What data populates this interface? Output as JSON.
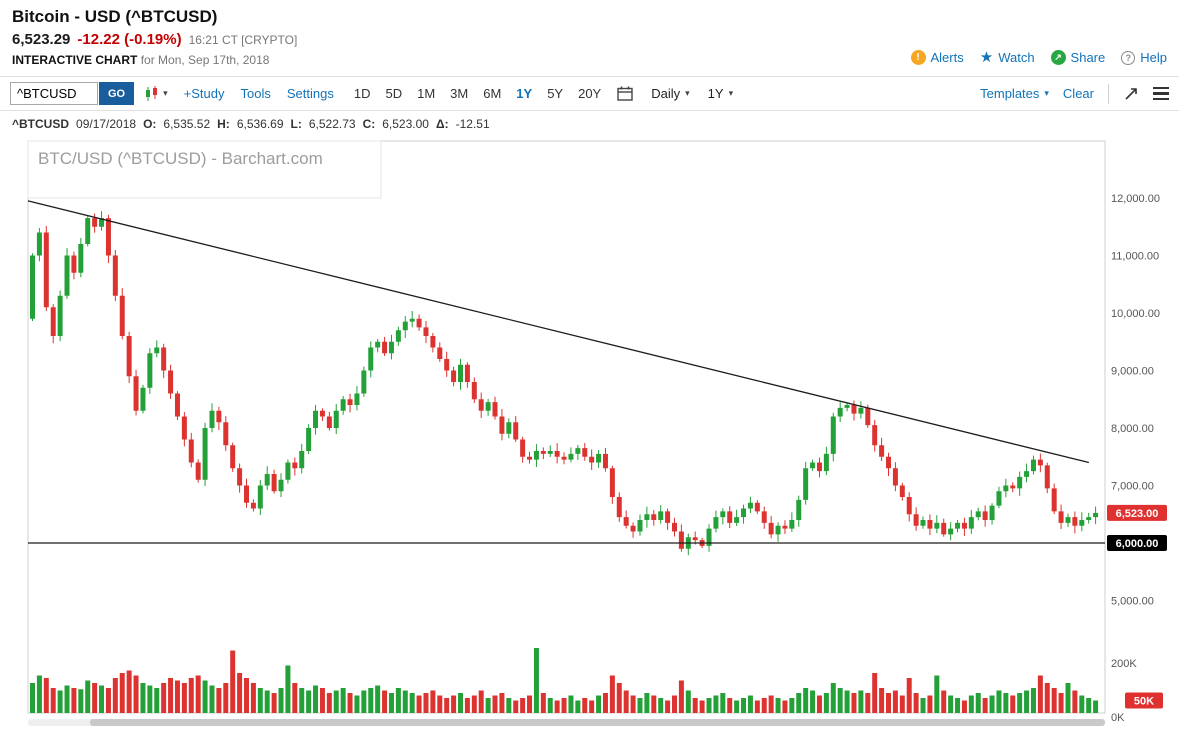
{
  "theme": {
    "link_blue": "#1273b8",
    "negative_red": "#c40000",
    "go_button_bg": "#1a5d9c",
    "alert_orange": "#f5a623",
    "share_green": "#28a745"
  },
  "header": {
    "title": "Bitcoin - USD (^BTCUSD)",
    "price": "6,523.29",
    "change": "-12.22 (-0.19%)",
    "quote_time": "16:21 CT [CRYPTO]",
    "chart_label": "INTERACTIVE CHART",
    "chart_date": "for Mon, Sep 17th, 2018",
    "actions": [
      {
        "label": "Alerts"
      },
      {
        "label": "Watch"
      },
      {
        "label": "Share"
      },
      {
        "label": "Help"
      }
    ]
  },
  "toolbar": {
    "symbol_input": "^BTCUSD",
    "go_label": "GO",
    "links": [
      "+Study",
      "Tools",
      "Settings"
    ],
    "ranges": [
      "1D",
      "5D",
      "1M",
      "3M",
      "6M",
      "1Y",
      "5Y",
      "20Y"
    ],
    "selected_range": "1Y",
    "frequency": "Daily",
    "period": "1Y",
    "templates_label": "Templates",
    "clear_label": "Clear"
  },
  "quote_line": {
    "symbol": "^BTCUSD",
    "date": "09/17/2018",
    "o_label": "O:",
    "o": "6,535.52",
    "h_label": "H:",
    "h": "6,536.69",
    "l_label": "L:",
    "l": "6,522.73",
    "c_label": "C:",
    "c": "6,523.00",
    "d_label": "Δ:",
    "d": "-12.51"
  },
  "chart_data": {
    "type": "candlestick",
    "title": "BTC/USD (^BTCUSD) - Barchart.com",
    "frequency": "Daily",
    "range": "1Y",
    "price_axis": {
      "ticks": [
        12000,
        11000,
        10000,
        9000,
        8000,
        7000,
        6000,
        5000
      ],
      "labels": [
        "12,000.00",
        "11,000.00",
        "10,000.00",
        "9,000.00",
        "8,000.00",
        "7,000.00",
        "6,000.00",
        "5,000.00"
      ],
      "min": 4600,
      "max": 12600
    },
    "last_price": 6523.0,
    "last_price_label": "6,523.00",
    "support_line": {
      "price": 6000,
      "label": "6,000.00"
    },
    "trendline": {
      "start_frac": 0,
      "start_price": 11950,
      "end_frac": 0.985,
      "end_price": 7400
    },
    "first_open": 9900,
    "closes": [
      11000,
      11400,
      10100,
      9600,
      10300,
      11000,
      10700,
      11200,
      11650,
      11500,
      11650,
      11000,
      10300,
      9600,
      8900,
      8300,
      8700,
      9300,
      9400,
      9000,
      8600,
      8200,
      7800,
      7400,
      7100,
      8000,
      8300,
      8100,
      7700,
      7300,
      7000,
      6700,
      6600,
      7000,
      7200,
      6900,
      7100,
      7400,
      7300,
      7600,
      8000,
      8300,
      8200,
      8000,
      8300,
      8500,
      8400,
      8600,
      9000,
      9400,
      9500,
      9300,
      9500,
      9700,
      9850,
      9900,
      9750,
      9600,
      9400,
      9200,
      9000,
      8800,
      9100,
      8800,
      8500,
      8300,
      8450,
      8200,
      7900,
      8100,
      7800,
      7500,
      7450,
      7600,
      7550,
      7600,
      7500,
      7450,
      7550,
      7650,
      7500,
      7400,
      7550,
      7300,
      6800,
      6450,
      6300,
      6200,
      6400,
      6500,
      6400,
      6550,
      6350,
      6200,
      5900,
      6100,
      6050,
      5950,
      6250,
      6450,
      6550,
      6350,
      6450,
      6600,
      6700,
      6550,
      6350,
      6150,
      6300,
      6250,
      6400,
      6750,
      7300,
      7400,
      7250,
      7550,
      8200,
      8350,
      8400,
      8250,
      8350,
      8050,
      7700,
      7500,
      7300,
      7000,
      6800,
      6500,
      6300,
      6400,
      6250,
      6350,
      6150,
      6250,
      6350,
      6250,
      6450,
      6550,
      6400,
      6650,
      6900,
      7000,
      6950,
      7150,
      7250,
      7450,
      7350,
      6950,
      6550,
      6350,
      6450,
      6300,
      6400,
      6450,
      6523
    ],
    "volumes_k": [
      120,
      150,
      140,
      100,
      90,
      110,
      100,
      95,
      130,
      120,
      110,
      100,
      140,
      160,
      170,
      150,
      120,
      110,
      100,
      120,
      140,
      130,
      120,
      140,
      150,
      130,
      110,
      100,
      120,
      250,
      160,
      140,
      120,
      100,
      90,
      80,
      100,
      190,
      120,
      100,
      90,
      110,
      100,
      80,
      90,
      100,
      80,
      70,
      90,
      100,
      110,
      90,
      80,
      100,
      90,
      80,
      70,
      80,
      90,
      70,
      60,
      70,
      80,
      60,
      70,
      90,
      60,
      70,
      80,
      60,
      50,
      60,
      70,
      260,
      80,
      60,
      50,
      60,
      70,
      50,
      60,
      50,
      70,
      80,
      150,
      120,
      90,
      70,
      60,
      80,
      70,
      60,
      50,
      70,
      130,
      90,
      60,
      50,
      60,
      70,
      80,
      60,
      50,
      60,
      70,
      50,
      60,
      70,
      60,
      50,
      60,
      80,
      100,
      90,
      70,
      80,
      120,
      100,
      90,
      80,
      90,
      80,
      160,
      100,
      80,
      90,
      70,
      140,
      80,
      60,
      70,
      150,
      90,
      70,
      60,
      50,
      70,
      80,
      60,
      70,
      90,
      80,
      70,
      80,
      90,
      100,
      150,
      120,
      100,
      80,
      120,
      90,
      70,
      60,
      50
    ],
    "volume_axis": {
      "max_k": 200,
      "top_label": "200K",
      "current_label": "50K",
      "zero_label": "0K"
    },
    "colors": {
      "up": "#23a037",
      "down": "#dd3330",
      "last_badge": "#e03131",
      "support_badge": "#000000",
      "trendline": "#1c1c1c"
    }
  }
}
